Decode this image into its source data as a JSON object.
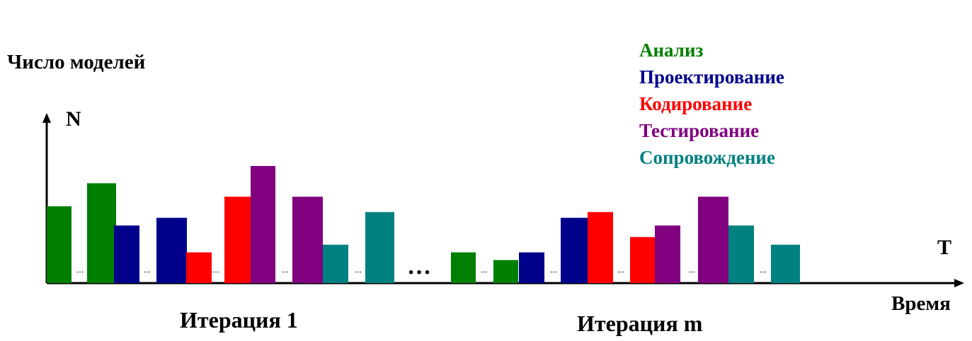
{
  "chart_data": {
    "type": "bar",
    "ylabel": "Число моделей",
    "y_axis_symbol": "N",
    "x_axis_symbol": "T",
    "xlabel": "Время",
    "legend_position": "top-right",
    "grid": false,
    "ylim": [
      0,
      7
    ],
    "series": [
      {
        "name": "Анализ",
        "color": "#007f00"
      },
      {
        "name": "Проектирование",
        "color": "#00008b"
      },
      {
        "name": "Кодирование",
        "color": "#ff0000"
      },
      {
        "name": "Тестирование",
        "color": "#800080"
      },
      {
        "name": "Сопровождение",
        "color": "#008080"
      }
    ],
    "groups": [
      {
        "label": "Итерация 1",
        "bars": [
          {
            "series": "Анализ",
            "value": 4.0
          },
          {
            "series": "Анализ",
            "value": 5.2
          },
          {
            "series": "Проектирование",
            "value": 3.0
          },
          {
            "series": "Проектирование",
            "value": 3.4
          },
          {
            "series": "Кодирование",
            "value": 1.6
          },
          {
            "series": "Кодирование",
            "value": 4.5
          },
          {
            "series": "Тестирование",
            "value": 6.1
          },
          {
            "series": "Тестирование",
            "value": 4.5
          },
          {
            "series": "Сопровождение",
            "value": 2.0
          },
          {
            "series": "Сопровождение",
            "value": 3.7
          }
        ]
      },
      {
        "label": "Итерация m",
        "bars": [
          {
            "series": "Анализ",
            "value": 1.6
          },
          {
            "series": "Анализ",
            "value": 1.2
          },
          {
            "series": "Проектирование",
            "value": 1.6
          },
          {
            "series": "Проектирование",
            "value": 3.4
          },
          {
            "series": "Кодирование",
            "value": 3.7
          },
          {
            "series": "Кодирование",
            "value": 2.4
          },
          {
            "series": "Тестирование",
            "value": 3.0
          },
          {
            "series": "Тестирование",
            "value": 4.5
          },
          {
            "series": "Сопровождение",
            "value": 3.0
          },
          {
            "series": "Сопровождение",
            "value": 2.0
          }
        ]
      }
    ],
    "gap_marker": "...",
    "iteration_gap": "…"
  }
}
